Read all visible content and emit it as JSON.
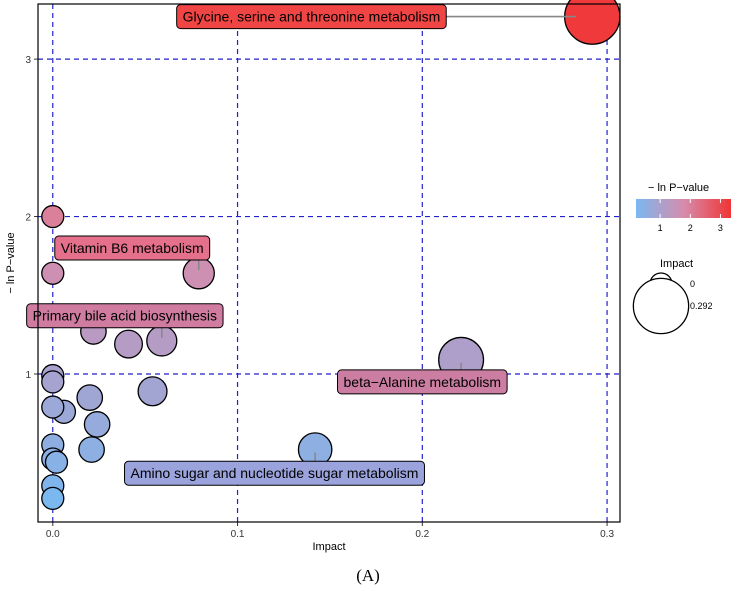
{
  "chart_data": {
    "type": "scatter",
    "xlabel": "Impact",
    "ylabel": "− ln P−value",
    "xlim": [
      -0.008,
      0.307
    ],
    "ylim": [
      0.06,
      3.35
    ],
    "xticks": [
      0,
      0.1,
      0.2,
      0.3
    ],
    "yticks": [
      1,
      2,
      3
    ],
    "x_tick_labels": [
      "0.0",
      "0.1",
      "0.2",
      "0.3"
    ],
    "y_tick_labels": [
      "1",
      "2",
      "3"
    ],
    "grid_color": "#2222cc",
    "color_low": "#7ab8f0",
    "color_mid": "#d68cac",
    "color_high": "#f03535",
    "color_range": [
      0.2,
      3.35
    ],
    "points": [
      {
        "x": 0.292,
        "y": 3.27,
        "impact": 0.292
      },
      {
        "x": 0.079,
        "y": 1.64,
        "impact": 0.08
      },
      {
        "x": 0.0,
        "y": 2.0,
        "impact": 0.0
      },
      {
        "x": 0.0,
        "y": 1.64,
        "impact": 0.0
      },
      {
        "x": 0.022,
        "y": 1.27,
        "impact": 0.03
      },
      {
        "x": 0.041,
        "y": 1.19,
        "impact": 0.05
      },
      {
        "x": 0.059,
        "y": 1.21,
        "impact": 0.07
      },
      {
        "x": 0.221,
        "y": 1.09,
        "impact": 0.2
      },
      {
        "x": 0.0,
        "y": 0.99,
        "impact": 0.0
      },
      {
        "x": 0.0,
        "y": 0.95,
        "impact": 0.0
      },
      {
        "x": 0.054,
        "y": 0.89,
        "impact": 0.06
      },
      {
        "x": 0.02,
        "y": 0.85,
        "impact": 0.03
      },
      {
        "x": 0.0,
        "y": 0.79,
        "impact": 0.0
      },
      {
        "x": 0.006,
        "y": 0.76,
        "impact": 0.01
      },
      {
        "x": 0.024,
        "y": 0.68,
        "impact": 0.03
      },
      {
        "x": 0.0,
        "y": 0.55,
        "impact": 0.0
      },
      {
        "x": 0.021,
        "y": 0.52,
        "impact": 0.03
      },
      {
        "x": 0.142,
        "y": 0.52,
        "impact": 0.1
      },
      {
        "x": 0.0,
        "y": 0.46,
        "impact": 0.0
      },
      {
        "x": 0.002,
        "y": 0.44,
        "impact": 0.0
      },
      {
        "x": 0.0,
        "y": 0.29,
        "impact": 0.0
      },
      {
        "x": 0.0,
        "y": 0.21,
        "impact": 0.0
      }
    ],
    "annotations": [
      {
        "text": "Glycine, serine and threonine metabolism",
        "point": 0,
        "label_x": 0.14,
        "label_y": 3.27,
        "fill": "#f04545"
      },
      {
        "text": "Vitamin B6 metabolism",
        "point": 1,
        "label_x": 0.043,
        "label_y": 1.8,
        "fill": "#e4708c"
      },
      {
        "text": "Primary bile acid biosynthesis",
        "point": 6,
        "label_x": 0.039,
        "label_y": 1.37,
        "fill": "#d07ca0"
      },
      {
        "text": "beta−Alanine metabolism",
        "point": 7,
        "label_x": 0.2,
        "label_y": 0.95,
        "fill": "#cc7ea2"
      },
      {
        "text": "Amino sugar and nucleotide sugar metabolism",
        "point": 17,
        "label_x": 0.12,
        "label_y": 0.37,
        "fill": "#9aa3dc"
      }
    ],
    "legend": {
      "color_title": "− ln P−value",
      "color_ticks": [
        "1",
        "2",
        "3"
      ],
      "color_tick_values": [
        1,
        2,
        3
      ],
      "size_title": "Impact",
      "size_entries": [
        {
          "label": "0",
          "impact": 0.0
        },
        {
          "label": "0.292",
          "impact": 0.292
        }
      ]
    }
  },
  "caption": "(A)"
}
